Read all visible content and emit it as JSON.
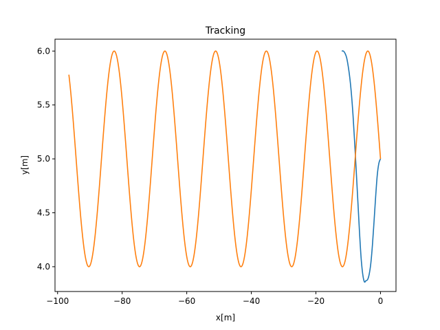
{
  "chart_data": {
    "type": "line",
    "title": "Tracking",
    "xlabel": "x[m]",
    "ylabel": "y[m]",
    "xlim": [
      -100.8,
      4.8
    ],
    "ylim": [
      3.77,
      6.11
    ],
    "x_ticks": [
      -100,
      -80,
      -60,
      -40,
      -20,
      0
    ],
    "x_tick_labels": [
      "−100",
      "−80",
      "−60",
      "−40",
      "−20",
      "0"
    ],
    "y_ticks": [
      4.0,
      4.5,
      5.0,
      5.5,
      6.0
    ],
    "y_tick_labels": [
      "4.0",
      "4.5",
      "5.0",
      "5.5",
      "6.0"
    ],
    "grid": false,
    "legend": "none",
    "series": [
      {
        "color": "#1f77b4",
        "points": [
          [
            0.0,
            5.0
          ],
          [
            -0.5,
            4.96
          ],
          [
            -1.0,
            4.85
          ],
          [
            -1.5,
            4.65
          ],
          [
            -2.0,
            4.42
          ],
          [
            -2.5,
            4.2
          ],
          [
            -3.0,
            4.03
          ],
          [
            -3.5,
            3.93
          ],
          [
            -4.0,
            3.88
          ],
          [
            -4.5,
            3.87
          ],
          [
            -5.0,
            3.86
          ],
          [
            -5.5,
            3.93
          ],
          [
            -6.0,
            4.08
          ],
          [
            -6.5,
            4.32
          ],
          [
            -7.0,
            4.6
          ],
          [
            -7.5,
            4.88
          ],
          [
            -8.0,
            5.15
          ],
          [
            -8.5,
            5.4
          ],
          [
            -9.0,
            5.6
          ],
          [
            -9.5,
            5.75
          ],
          [
            -10.0,
            5.86
          ],
          [
            -10.5,
            5.94
          ],
          [
            -11.0,
            5.98
          ],
          [
            -11.5,
            6.0
          ],
          [
            -12.0,
            6.0
          ]
        ]
      },
      {
        "color": "#ff7f0e",
        "function": {
          "kind": "sinusoid",
          "center": 5.0,
          "amplitude": 1.0,
          "period": 15.71,
          "phase_x": 0.0,
          "x_start": 0.0,
          "x_end": -96.5
        }
      }
    ]
  }
}
